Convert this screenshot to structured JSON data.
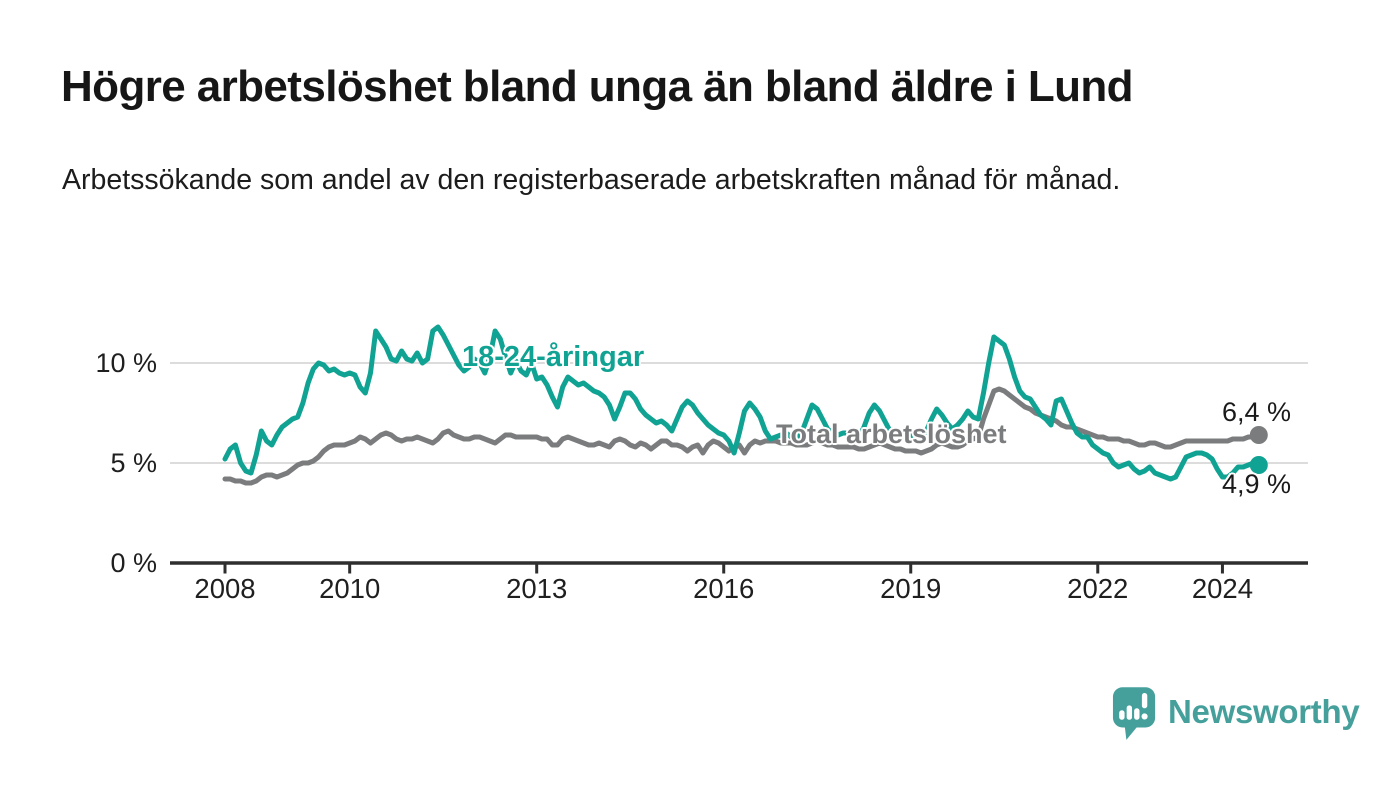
{
  "title": "Högre arbetslöshet bland unga än bland äldre i Lund",
  "subtitle": "Arbetssökande som andel av den registerbaserade arbetskraften månad för månad.",
  "branding": {
    "name": "Newsworthy",
    "color": "#45a09c",
    "icon": "bar-chart-speech-bubble-icon"
  },
  "chart_data": {
    "type": "line",
    "title": "Högre arbetslöshet bland unga än bland äldre i Lund",
    "subtitle": "Arbetssökande som andel av den registerbaserade arbetskraften månad för månad.",
    "frequency": "monthly",
    "x_start": "2008-01",
    "x_end": "2024-08",
    "ylim": [
      0,
      12.5
    ],
    "grid": "horizontal",
    "legend": "inline-labels",
    "y_ticks": [
      {
        "value": 0,
        "label": "0 %"
      },
      {
        "value": 5,
        "label": "5 %"
      },
      {
        "value": 10,
        "label": "10 %"
      }
    ],
    "x_ticks": [
      {
        "value": 2008,
        "label": "2008"
      },
      {
        "value": 2010,
        "label": "2010"
      },
      {
        "value": 2013,
        "label": "2013"
      },
      {
        "value": 2016,
        "label": "2016"
      },
      {
        "value": 2019,
        "label": "2019"
      },
      {
        "value": 2022,
        "label": "2022"
      },
      {
        "value": 2024,
        "label": "2024"
      }
    ],
    "series": [
      {
        "name": "18-24-åringar",
        "color": "#10a292",
        "end_label": "4,9 %",
        "end_value": 4.9,
        "values": [
          5.2,
          5.7,
          5.9,
          5.0,
          4.6,
          4.5,
          5.4,
          6.6,
          6.1,
          5.9,
          6.4,
          6.8,
          7.0,
          7.2,
          7.3,
          8.0,
          9.0,
          9.7,
          10.0,
          9.9,
          9.6,
          9.7,
          9.5,
          9.4,
          9.5,
          9.4,
          8.8,
          8.5,
          9.5,
          11.6,
          11.2,
          10.8,
          10.2,
          10.1,
          10.6,
          10.2,
          10.1,
          10.5,
          10.0,
          10.2,
          11.6,
          11.8,
          11.4,
          10.9,
          10.4,
          9.9,
          9.6,
          9.8,
          10.2,
          10.0,
          9.5,
          10.3,
          11.6,
          11.2,
          10.3,
          9.5,
          10.1,
          9.6,
          9.4,
          10.0,
          9.2,
          9.3,
          8.9,
          8.3,
          7.8,
          8.8,
          9.3,
          9.1,
          8.9,
          9.0,
          8.8,
          8.6,
          8.5,
          8.3,
          7.9,
          7.2,
          7.8,
          8.5,
          8.5,
          8.2,
          7.7,
          7.4,
          7.2,
          7.0,
          7.1,
          6.9,
          6.6,
          7.2,
          7.8,
          8.1,
          7.9,
          7.5,
          7.2,
          6.9,
          6.7,
          6.5,
          6.4,
          6.1,
          5.5,
          6.5,
          7.6,
          8.0,
          7.7,
          7.3,
          6.6,
          6.2,
          6.3,
          6.4,
          6.5,
          6.3,
          6.2,
          6.5,
          7.2,
          7.9,
          7.7,
          7.2,
          6.7,
          6.5,
          6.4,
          6.5,
          6.5,
          6.4,
          6.3,
          6.8,
          7.5,
          7.9,
          7.6,
          7.1,
          6.6,
          6.4,
          6.3,
          6.4,
          6.4,
          6.3,
          6.3,
          6.6,
          7.2,
          7.7,
          7.4,
          7.0,
          6.7,
          6.9,
          7.2,
          7.6,
          7.3,
          7.2,
          8.5,
          10.0,
          11.3,
          11.1,
          10.9,
          10.2,
          9.3,
          8.6,
          8.3,
          8.2,
          7.8,
          7.4,
          7.2,
          6.9,
          8.1,
          8.2,
          7.6,
          7.0,
          6.5,
          6.3,
          6.3,
          5.9,
          5.7,
          5.5,
          5.4,
          5.0,
          4.8,
          4.9,
          5.0,
          4.7,
          4.5,
          4.6,
          4.8,
          4.5,
          4.4,
          4.3,
          4.2,
          4.3,
          4.8,
          5.3,
          5.4,
          5.5,
          5.5,
          5.4,
          5.2,
          4.7,
          4.3,
          4.3,
          4.5,
          4.8,
          4.8,
          4.9,
          5.0,
          4.9
        ]
      },
      {
        "name": "Total arbetslöshet",
        "color": "#7b7c7e",
        "end_label": "6,4 %",
        "end_value": 6.4,
        "values": [
          4.2,
          4.2,
          4.1,
          4.1,
          4.0,
          4.0,
          4.1,
          4.3,
          4.4,
          4.4,
          4.3,
          4.4,
          4.5,
          4.7,
          4.9,
          5.0,
          5.0,
          5.1,
          5.3,
          5.6,
          5.8,
          5.9,
          5.9,
          5.9,
          6.0,
          6.1,
          6.3,
          6.2,
          6.0,
          6.2,
          6.4,
          6.5,
          6.4,
          6.2,
          6.1,
          6.2,
          6.2,
          6.3,
          6.2,
          6.1,
          6.0,
          6.2,
          6.5,
          6.6,
          6.4,
          6.3,
          6.2,
          6.2,
          6.3,
          6.3,
          6.2,
          6.1,
          6.0,
          6.2,
          6.4,
          6.4,
          6.3,
          6.3,
          6.3,
          6.3,
          6.3,
          6.2,
          6.2,
          5.9,
          5.9,
          6.2,
          6.3,
          6.2,
          6.1,
          6.0,
          5.9,
          5.9,
          6.0,
          5.9,
          5.8,
          6.1,
          6.2,
          6.1,
          5.9,
          5.8,
          6.0,
          5.9,
          5.7,
          5.9,
          6.1,
          6.1,
          5.9,
          5.9,
          5.8,
          5.6,
          5.8,
          5.9,
          5.5,
          5.9,
          6.1,
          6.0,
          5.8,
          5.6,
          5.8,
          5.9,
          5.5,
          5.9,
          6.1,
          6.0,
          6.1,
          6.1,
          6.1,
          6.0,
          6.0,
          6.0,
          5.9,
          5.9,
          5.9,
          6.0,
          6.1,
          6.0,
          5.9,
          5.9,
          5.8,
          5.8,
          5.8,
          5.8,
          5.7,
          5.7,
          5.8,
          5.9,
          6.0,
          5.9,
          5.8,
          5.7,
          5.7,
          5.6,
          5.6,
          5.6,
          5.5,
          5.6,
          5.7,
          5.9,
          6.0,
          5.9,
          5.8,
          5.8,
          5.9,
          6.1,
          6.2,
          6.3,
          7.2,
          7.9,
          8.6,
          8.7,
          8.6,
          8.4,
          8.2,
          8.0,
          7.8,
          7.7,
          7.5,
          7.4,
          7.3,
          7.2,
          7.1,
          6.9,
          6.8,
          6.8,
          6.7,
          6.6,
          6.5,
          6.4,
          6.3,
          6.3,
          6.2,
          6.2,
          6.2,
          6.1,
          6.1,
          6.0,
          5.9,
          5.9,
          6.0,
          6.0,
          5.9,
          5.8,
          5.8,
          5.9,
          6.0,
          6.1,
          6.1,
          6.1,
          6.1,
          6.1,
          6.1,
          6.1,
          6.1,
          6.1,
          6.2,
          6.2,
          6.2,
          6.3,
          6.3,
          6.4
        ]
      }
    ]
  }
}
